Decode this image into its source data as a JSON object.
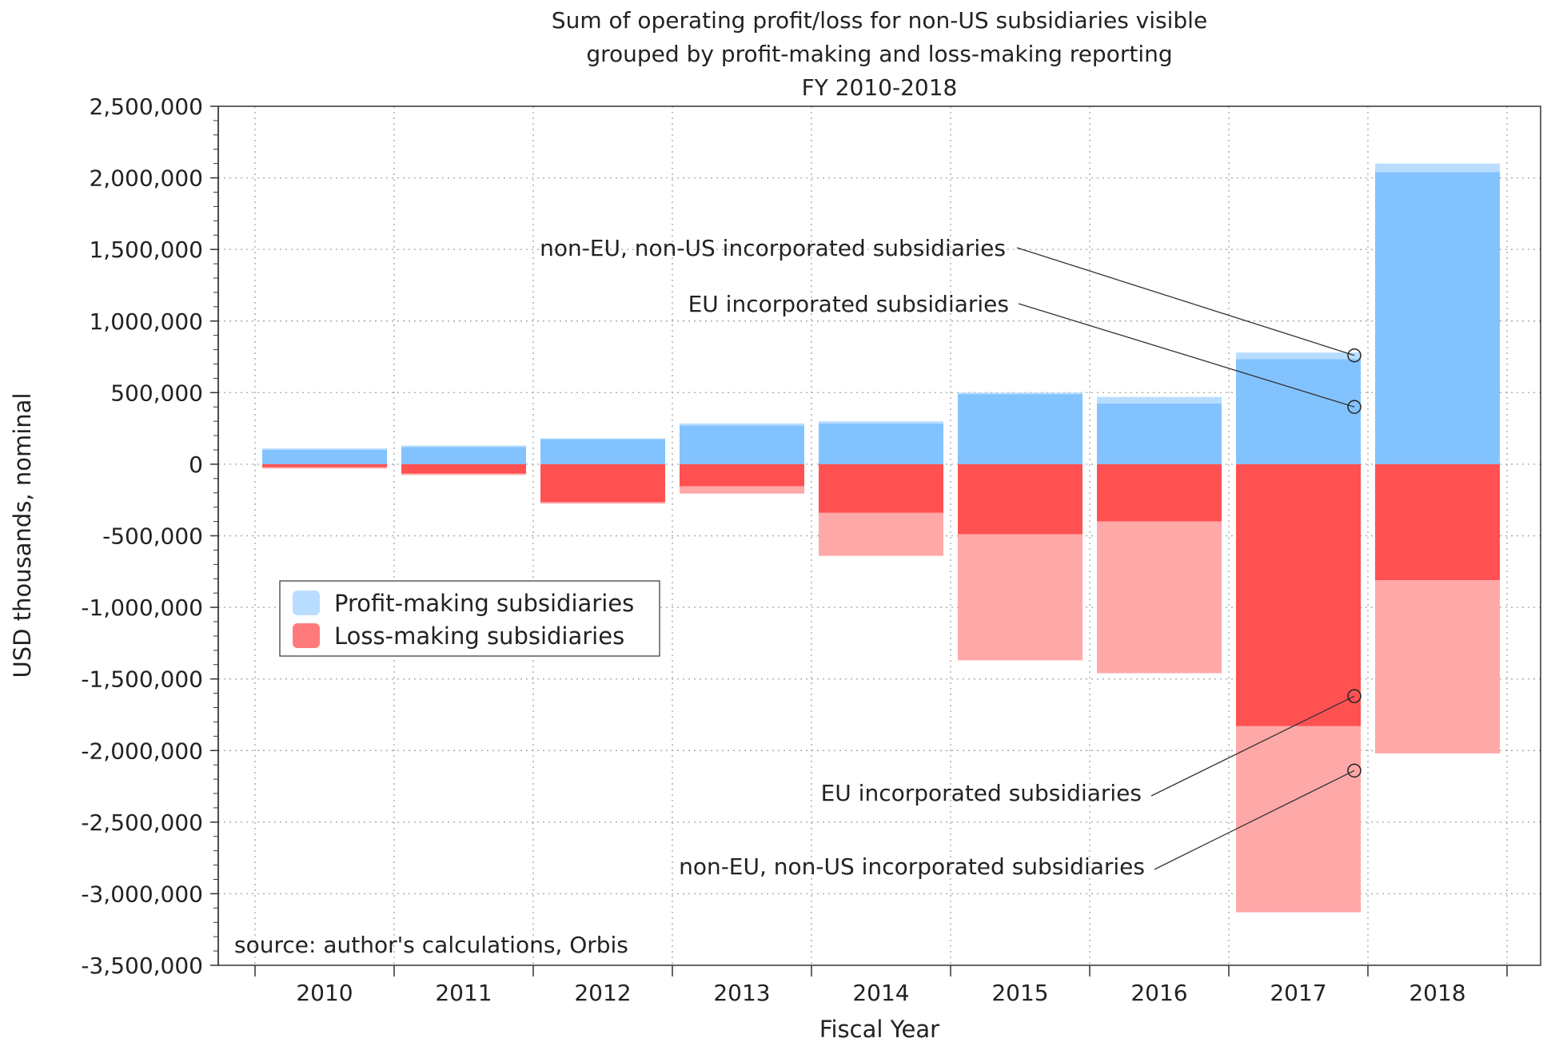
{
  "chart_data": {
    "type": "bar",
    "stacked": true,
    "title_lines": [
      "Sum of operating profit/loss for non-US subsidiaries visible",
      "grouped by profit-making and loss-making reporting",
      "FY 2010-2018"
    ],
    "xlabel": "Fiscal Year",
    "ylabel": "USD thousands, nominal",
    "ylim": [
      -3500000,
      2500000
    ],
    "yticks": [
      2500000,
      2000000,
      1500000,
      1000000,
      500000,
      0,
      -500000,
      -1000000,
      -1500000,
      -2000000,
      -2500000,
      -3000000,
      -3500000
    ],
    "ytick_labels": [
      "2,500,000",
      "2,000,000",
      "1,500,000",
      "1,000,000",
      "500,000",
      "0",
      "-500,000",
      "-1,000,000",
      "-1,500,000",
      "-2,000,000",
      "-2,500,000",
      "-3,000,000",
      "-3,500,000"
    ],
    "categories": [
      "2010",
      "2011",
      "2012",
      "2013",
      "2014",
      "2015",
      "2016",
      "2017",
      "2018"
    ],
    "grid": true,
    "series": [
      {
        "name": "Profit-making, EU incorporated subsidiaries",
        "group": "profit",
        "color": "#82c3ff",
        "values": [
          100000,
          120000,
          175000,
          270000,
          285000,
          490000,
          425000,
          735000,
          2040000
        ]
      },
      {
        "name": "Profit-making, non-EU, non-US incorporated subsidiaries",
        "group": "profit",
        "color": "#b9ddff",
        "values": [
          10000,
          10000,
          5000,
          15000,
          15000,
          10000,
          45000,
          45000,
          60000
        ]
      },
      {
        "name": "Loss-making, EU incorporated subsidiaries",
        "group": "loss",
        "color": "#ff5151",
        "values": [
          -20000,
          -65000,
          -265000,
          -155000,
          -340000,
          -490000,
          -400000,
          -1830000,
          -810000
        ]
      },
      {
        "name": "Loss-making, non-EU, non-US incorporated subsidiaries",
        "group": "loss",
        "color": "#ffa8a8",
        "values": [
          -10000,
          -10000,
          -10000,
          -50000,
          -300000,
          -880000,
          -1060000,
          -1300000,
          -1210000
        ]
      }
    ],
    "legend": {
      "position": "center-left",
      "items": [
        {
          "label": "Profit-making subsidiaries",
          "color": "#b9ddff"
        },
        {
          "label": "Loss-making subsidiaries",
          "color": "#ff7b7b"
        }
      ]
    },
    "annotations": [
      {
        "text": "non-EU, non-US incorporated subsidiaries",
        "category": "2017",
        "value": 760000
      },
      {
        "text": "EU incorporated subsidiaries",
        "category": "2017",
        "value": 400000
      },
      {
        "text": "EU incorporated subsidiaries",
        "category": "2017",
        "value": -1620000
      },
      {
        "text": "non-EU, non-US incorporated subsidiaries",
        "category": "2017",
        "value": -2140000
      }
    ],
    "source_note": "source: author's calculations, Orbis"
  }
}
